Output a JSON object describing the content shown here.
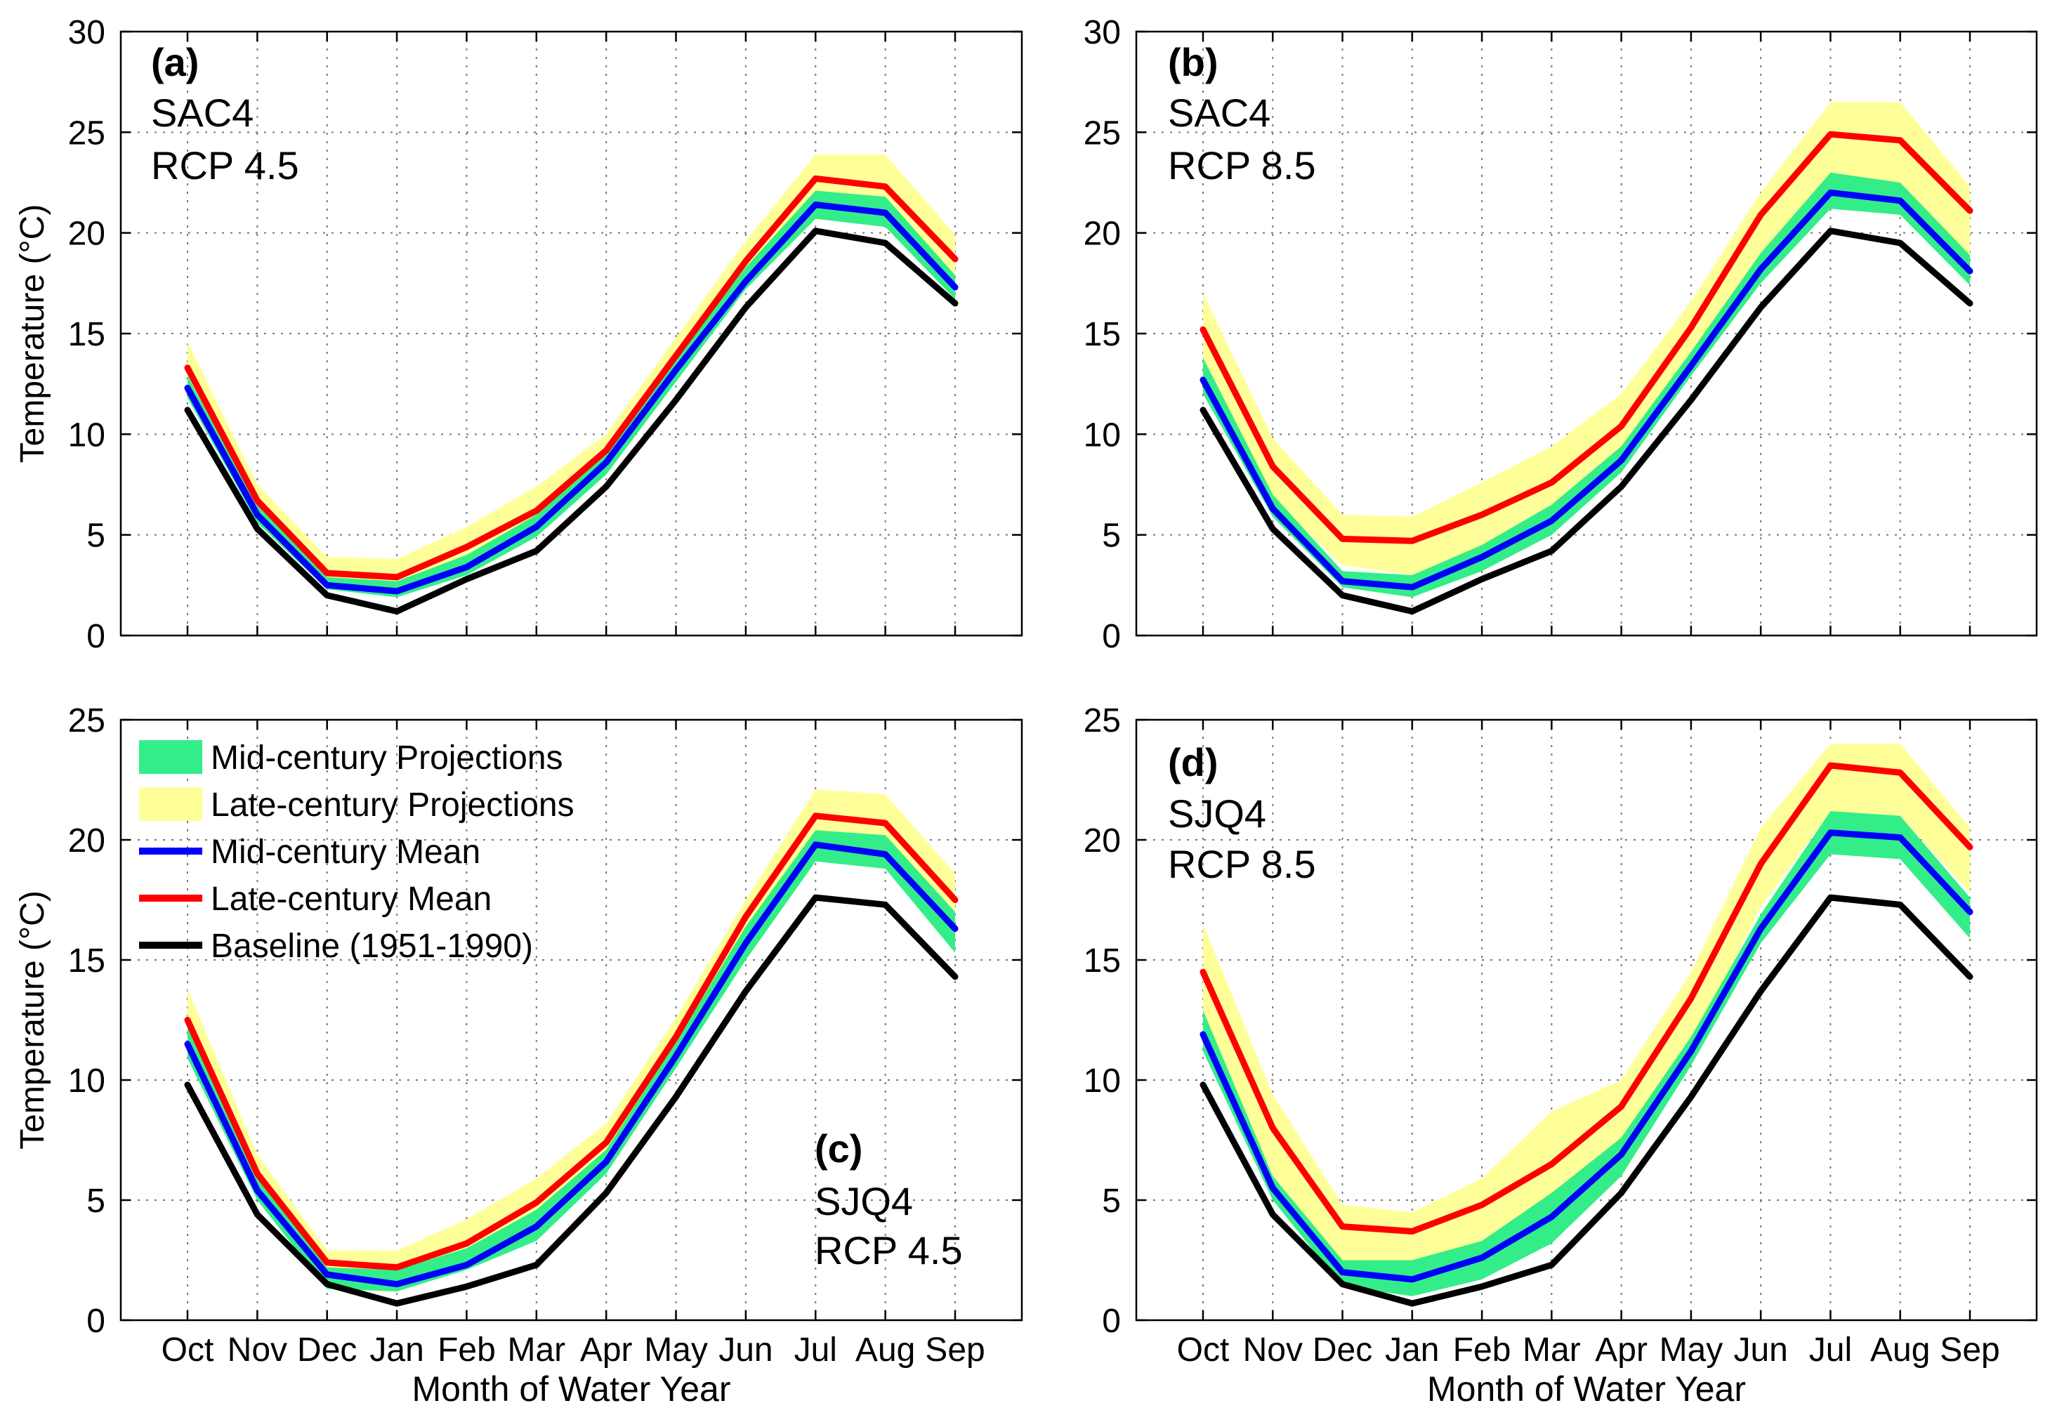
{
  "chart_data": [
    {
      "type": "area",
      "panel_label": "(a)",
      "basin": "SAC4",
      "scenario": "RCP 4.5",
      "xlabel": "",
      "ylabel": "Temperature (°C)",
      "ylim": [
        0,
        30
      ],
      "yticks": [
        0,
        5,
        10,
        15,
        20,
        25,
        30
      ],
      "grid": true,
      "categories": [
        "Oct",
        "Nov",
        "Dec",
        "Jan",
        "Feb",
        "Mar",
        "Apr",
        "May",
        "Jun",
        "Jul",
        "Aug",
        "Sep"
      ],
      "bands": [
        {
          "name": "Late-century Projections",
          "color": "#ffff99",
          "lower": [
            12.2,
            5.9,
            2.5,
            2.3,
            3.3,
            5.4,
            8.5,
            13.0,
            17.7,
            21.2,
            20.7,
            17.1
          ],
          "upper": [
            14.6,
            7.5,
            3.9,
            3.8,
            5.4,
            7.4,
            10.0,
            14.8,
            19.6,
            23.9,
            23.9,
            19.9
          ]
        },
        {
          "name": "Mid-century Projections",
          "color": "#33ee88",
          "lower": [
            11.8,
            5.6,
            2.3,
            1.9,
            3.0,
            4.9,
            8.0,
            12.6,
            17.2,
            20.7,
            20.3,
            16.7
          ],
          "upper": [
            12.9,
            6.5,
            2.9,
            2.7,
            4.0,
            6.0,
            9.0,
            13.8,
            18.3,
            22.1,
            21.8,
            17.9
          ]
        }
      ],
      "series": [
        {
          "name": "Baseline (1951-1990)",
          "color": "#000000",
          "values": [
            11.2,
            5.3,
            2.0,
            1.2,
            2.8,
            4.2,
            7.4,
            11.7,
            16.3,
            20.1,
            19.5,
            16.5
          ]
        },
        {
          "name": "Mid-century Mean",
          "color": "#0000ff",
          "values": [
            12.3,
            6.0,
            2.5,
            2.2,
            3.4,
            5.4,
            8.6,
            13.2,
            17.6,
            21.4,
            21.0,
            17.3
          ]
        },
        {
          "name": "Late-century Mean",
          "color": "#ff0000",
          "values": [
            13.3,
            6.7,
            3.1,
            2.9,
            4.4,
            6.2,
            9.2,
            13.9,
            18.6,
            22.7,
            22.3,
            18.7
          ]
        }
      ]
    },
    {
      "type": "area",
      "panel_label": "(b)",
      "basin": "SAC4",
      "scenario": "RCP 8.5",
      "xlabel": "",
      "ylabel": "",
      "ylim": [
        0,
        30
      ],
      "yticks": [
        0,
        5,
        10,
        15,
        20,
        25,
        30
      ],
      "grid": true,
      "categories": [
        "Oct",
        "Nov",
        "Dec",
        "Jan",
        "Feb",
        "Mar",
        "Apr",
        "May",
        "Jun",
        "Jul",
        "Aug",
        "Sep"
      ],
      "bands": [
        {
          "name": "Late-century Projections",
          "color": "#ffff99",
          "lower": [
            13.0,
            6.8,
            3.5,
            3.0,
            4.2,
            5.9,
            8.9,
            13.8,
            19.0,
            22.6,
            22.4,
            18.8
          ],
          "upper": [
            17.0,
            9.8,
            6.0,
            5.9,
            7.6,
            9.4,
            12.0,
            16.6,
            22.0,
            26.5,
            26.5,
            22.3
          ]
        },
        {
          "name": "Mid-century Projections",
          "color": "#33ee88",
          "lower": [
            12.0,
            5.9,
            2.4,
            1.9,
            3.2,
            5.0,
            8.1,
            12.9,
            17.5,
            21.2,
            20.9,
            17.4
          ],
          "upper": [
            13.8,
            7.0,
            3.2,
            3.0,
            4.5,
            6.5,
            9.4,
            14.1,
            19.0,
            23.0,
            22.5,
            18.9
          ]
        }
      ],
      "series": [
        {
          "name": "Baseline (1951-1990)",
          "color": "#000000",
          "values": [
            11.2,
            5.3,
            2.0,
            1.2,
            2.8,
            4.2,
            7.4,
            11.7,
            16.3,
            20.1,
            19.5,
            16.5
          ]
        },
        {
          "name": "Mid-century Mean",
          "color": "#0000ff",
          "values": [
            12.7,
            6.3,
            2.7,
            2.4,
            3.9,
            5.7,
            8.7,
            13.4,
            18.2,
            22.0,
            21.6,
            18.1
          ]
        },
        {
          "name": "Late-century Mean",
          "color": "#ff0000",
          "values": [
            15.2,
            8.4,
            4.8,
            4.7,
            6.0,
            7.6,
            10.4,
            15.3,
            20.9,
            24.9,
            24.6,
            21.1
          ]
        }
      ]
    },
    {
      "type": "area",
      "panel_label": "(c)",
      "basin": "SJQ4",
      "scenario": "RCP 4.5",
      "xlabel": "Month of Water Year",
      "ylabel": "Temperature (°C)",
      "ylim": [
        0,
        25
      ],
      "yticks": [
        0,
        5,
        10,
        15,
        20,
        25
      ],
      "grid": true,
      "categories": [
        "Oct",
        "Nov",
        "Dec",
        "Jan",
        "Feb",
        "Mar",
        "Apr",
        "May",
        "Jun",
        "Jul",
        "Aug",
        "Sep"
      ],
      "legend_position": "top-left",
      "bands": [
        {
          "name": "Late-century Projections",
          "color": "#ffff99",
          "lower": [
            11.2,
            5.3,
            1.8,
            1.5,
            2.4,
            4.0,
            6.6,
            11.0,
            16.0,
            19.7,
            19.4,
            16.0
          ],
          "upper": [
            13.8,
            6.9,
            2.9,
            2.9,
            4.2,
            5.9,
            8.2,
            12.6,
            17.5,
            22.1,
            21.9,
            18.6
          ]
        },
        {
          "name": "Mid-century Projections",
          "color": "#33ee88",
          "lower": [
            10.9,
            5.0,
            1.3,
            1.2,
            2.1,
            3.3,
            6.1,
            10.5,
            15.0,
            19.1,
            18.8,
            15.3
          ],
          "upper": [
            12.2,
            5.9,
            2.2,
            2.1,
            3.0,
            4.6,
            7.1,
            11.6,
            16.4,
            20.4,
            20.2,
            17.0
          ]
        }
      ],
      "series": [
        {
          "name": "Baseline (1951-1990)",
          "color": "#000000",
          "values": [
            9.8,
            4.4,
            1.5,
            0.7,
            1.4,
            2.3,
            5.3,
            9.3,
            13.7,
            17.6,
            17.3,
            14.3
          ]
        },
        {
          "name": "Mid-century Mean",
          "color": "#0000ff",
          "values": [
            11.5,
            5.4,
            1.9,
            1.5,
            2.3,
            3.9,
            6.6,
            11.0,
            15.7,
            19.8,
            19.4,
            16.3
          ]
        },
        {
          "name": "Late-century Mean",
          "color": "#ff0000",
          "values": [
            12.5,
            6.1,
            2.4,
            2.2,
            3.2,
            4.9,
            7.4,
            11.8,
            16.8,
            21.0,
            20.7,
            17.5
          ]
        }
      ]
    },
    {
      "type": "area",
      "panel_label": "(d)",
      "basin": "SJQ4",
      "scenario": "RCP 8.5",
      "xlabel": "Month of Water Year",
      "ylabel": "",
      "ylim": [
        0,
        25
      ],
      "yticks": [
        0,
        5,
        10,
        15,
        20,
        25
      ],
      "grid": true,
      "categories": [
        "Oct",
        "Nov",
        "Dec",
        "Jan",
        "Feb",
        "Mar",
        "Apr",
        "May",
        "Jun",
        "Jul",
        "Aug",
        "Sep"
      ],
      "bands": [
        {
          "name": "Late-century Projections",
          "color": "#ffff99",
          "lower": [
            12.6,
            6.0,
            2.2,
            2.0,
            3.0,
            4.6,
            7.1,
            11.5,
            17.2,
            21.2,
            21.0,
            17.8
          ],
          "upper": [
            16.5,
            9.4,
            4.8,
            4.5,
            5.9,
            8.7,
            10.0,
            14.5,
            20.5,
            24.0,
            24.0,
            20.5
          ]
        },
        {
          "name": "Mid-century Projections",
          "color": "#33ee88",
          "lower": [
            11.2,
            5.0,
            1.4,
            1.0,
            1.7,
            3.2,
            6.0,
            10.6,
            15.7,
            19.4,
            19.2,
            15.9
          ],
          "upper": [
            12.9,
            6.0,
            2.5,
            2.5,
            3.3,
            5.3,
            7.6,
            11.8,
            16.9,
            21.2,
            21.0,
            17.6
          ]
        }
      ],
      "series": [
        {
          "name": "Baseline (1951-1990)",
          "color": "#000000",
          "values": [
            9.8,
            4.4,
            1.5,
            0.7,
            1.4,
            2.3,
            5.3,
            9.3,
            13.7,
            17.6,
            17.3,
            14.3
          ]
        },
        {
          "name": "Mid-century Mean",
          "color": "#0000ff",
          "values": [
            11.9,
            5.5,
            2.0,
            1.7,
            2.6,
            4.3,
            6.9,
            11.2,
            16.3,
            20.3,
            20.1,
            17.0
          ]
        },
        {
          "name": "Late-century Mean",
          "color": "#ff0000",
          "values": [
            14.5,
            8.0,
            3.9,
            3.7,
            4.8,
            6.5,
            8.9,
            13.4,
            19.0,
            23.1,
            22.8,
            19.7
          ]
        }
      ]
    }
  ],
  "legend": {
    "entries": [
      {
        "label": "Mid-century Projections",
        "color": "#33ee88",
        "kind": "patch"
      },
      {
        "label": "Late-century Projections",
        "color": "#ffff99",
        "kind": "patch"
      },
      {
        "label": "Mid-century Mean",
        "color": "#0000ff",
        "kind": "line"
      },
      {
        "label": "Late-century Mean",
        "color": "#ff0000",
        "kind": "line"
      },
      {
        "label": "Baseline (1951-1990)",
        "color": "#000000",
        "kind": "line"
      }
    ]
  }
}
